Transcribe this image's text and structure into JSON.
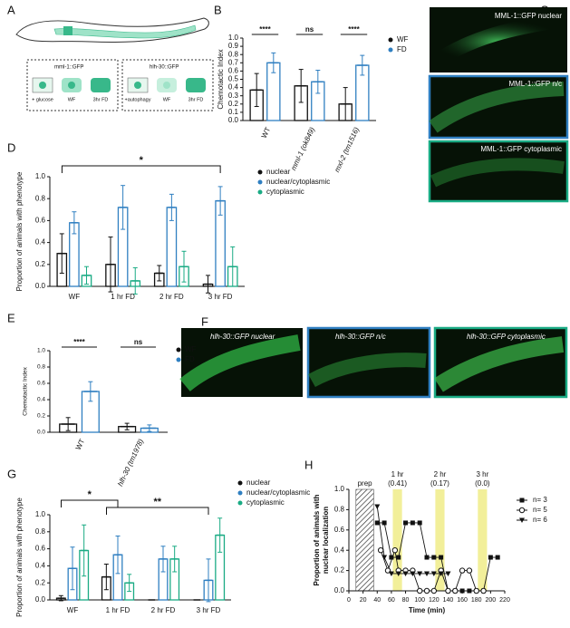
{
  "figure": {
    "panels": [
      "A",
      "B",
      "C",
      "D",
      "E",
      "F",
      "G",
      "H"
    ],
    "schematic": {
      "left": {
        "title": "mml-1::GFP",
        "items": [
          "+ glucose",
          "WF",
          "3hr FD"
        ]
      },
      "right": {
        "title": "hlh-30::GFP",
        "items": [
          "+autophagy",
          "WF",
          "3hr FD"
        ]
      }
    },
    "micrographs_c": [
      "MML-1::GFP nuclear",
      "MML-1::GFP n/c",
      "MML-1::GFP cytoplasmic"
    ],
    "micrographs_f": [
      "hlh-30::GFP nuclear",
      "hlh-30::GFP n/c",
      "hlh-30::GFP cytoplasmic"
    ]
  },
  "chart_data": [
    {
      "type": "bar",
      "ylabel": "Chemotactic Index",
      "categories": [
        "WT",
        "mml-1 (ok849)",
        "mxl-2 (tm1516)"
      ],
      "ylim": [
        0,
        1
      ],
      "yticks": [
        {
          "value": 0,
          "label": "0.0"
        },
        0.1,
        0.2,
        0.3,
        0.4,
        0.5,
        0.6,
        0.7,
        0.8,
        0.9,
        {
          "value": 1,
          "label": "1.0"
        }
      ],
      "series": [
        {
          "name": "WF",
          "color": "#111111",
          "values": [
            0.37,
            0.42,
            0.2
          ],
          "errors": [
            0.2,
            0.2,
            0.2
          ]
        },
        {
          "name": "FD",
          "color": "#2f7fc1",
          "values": [
            0.7,
            0.47,
            0.67
          ],
          "errors": [
            0.12,
            0.14,
            0.12
          ]
        }
      ],
      "significance": [
        "****",
        "ns",
        "****"
      ]
    },
    {
      "type": "bar",
      "ylabel": "Proportion of animals with phenotype",
      "categories": [
        "WF",
        "1 hr FD",
        "2 hr FD",
        "3 hr FD"
      ],
      "ylim": [
        0,
        1
      ],
      "yticks": [
        {
          "value": 0,
          "label": "0.0"
        },
        0.2,
        0.4,
        0.6,
        0.8,
        {
          "value": 1,
          "label": "1.0"
        }
      ],
      "series": [
        {
          "name": "nuclear",
          "color": "#111111",
          "values": [
            0.3,
            0.2,
            0.12,
            0.02
          ],
          "errors": [
            0.18,
            0.25,
            0.07,
            0.08
          ]
        },
        {
          "name": "nuclear/cytoplasmic",
          "color": "#2f7fc1",
          "values": [
            0.58,
            0.72,
            0.72,
            0.78
          ],
          "errors": [
            0.1,
            0.2,
            0.12,
            0.13
          ]
        },
        {
          "name": "cytoplasmic",
          "color": "#1aab84",
          "values": [
            0.1,
            0.05,
            0.18,
            0.18
          ],
          "errors": [
            0.08,
            0.12,
            0.14,
            0.18
          ]
        }
      ],
      "brackets": [
        "*"
      ]
    },
    {
      "type": "bar",
      "ylabel": "Chemotactic Index",
      "categories": [
        "WT",
        "hlh-30 (tm1978)"
      ],
      "ylim": [
        0,
        1
      ],
      "yticks": [
        {
          "value": 0,
          "label": "0.0"
        },
        0.2,
        0.4,
        0.6,
        0.8,
        {
          "value": 1,
          "label": "1.0"
        }
      ],
      "series": [
        {
          "name": "WF",
          "color": "#111111",
          "values": [
            0.1,
            0.07
          ],
          "errors": [
            0.08,
            0.04
          ]
        },
        {
          "name": "FD",
          "color": "#2f7fc1",
          "values": [
            0.5,
            0.05
          ],
          "errors": [
            0.12,
            0.04
          ]
        }
      ],
      "significance": [
        "****",
        "ns"
      ]
    },
    {
      "type": "bar",
      "ylabel": "Proportion of animals with phenotype",
      "categories": [
        "WF",
        "1 hr FD",
        "2 hr FD",
        "3 hr FD"
      ],
      "ylim": [
        0,
        1
      ],
      "yticks": [
        {
          "value": 0,
          "label": "0.0"
        },
        0.2,
        0.4,
        0.6,
        0.8,
        {
          "value": 1,
          "label": "1.0"
        }
      ],
      "series": [
        {
          "name": "nuclear",
          "color": "#111111",
          "values": [
            0.02,
            0.27,
            0,
            0
          ],
          "errors": [
            0.03,
            0.15,
            0,
            0
          ]
        },
        {
          "name": "nuclear/cytoplasmic",
          "color": "#2f7fc1",
          "values": [
            0.37,
            0.53,
            0.48,
            0.23
          ],
          "errors": [
            0.25,
            0.22,
            0.15,
            0.25
          ]
        },
        {
          "name": "cytoplasmic",
          "color": "#1aab84",
          "values": [
            0.58,
            0.2,
            0.48,
            0.76
          ],
          "errors": [
            0.3,
            0.1,
            0.15,
            0.2
          ]
        }
      ],
      "brackets": [
        "*",
        "**"
      ]
    },
    {
      "type": "line",
      "ylabel": [
        "Proportion of animals with",
        "nuclear  localization"
      ],
      "xlabel": "Time (min)",
      "xlim": [
        0,
        220
      ],
      "xticks": [
        0,
        20,
        40,
        60,
        80,
        100,
        120,
        140,
        160,
        180,
        200,
        220
      ],
      "ylim": [
        0,
        1
      ],
      "yticks": [
        {
          "value": 0,
          "label": "0.0"
        },
        0.2,
        0.4,
        0.6,
        0.8,
        {
          "value": 1,
          "label": "1.0"
        }
      ],
      "prep": {
        "label": "prep",
        "range": [
          10,
          35
        ]
      },
      "windows": [
        {
          "label": "1 hr",
          "note": "(0.41)",
          "range": [
            62,
            75
          ]
        },
        {
          "label": "2 hr",
          "note": "(0.17)",
          "range": [
            122,
            135
          ]
        },
        {
          "label": "3 hr",
          "note": "(0.0)",
          "range": [
            182,
            195
          ]
        }
      ],
      "series": [
        {
          "name": "n= 3",
          "marker": "square",
          "x": [
            40,
            50,
            60,
            70,
            80,
            90,
            100,
            110,
            120,
            130,
            140,
            150,
            160,
            170,
            180,
            190,
            200,
            210
          ],
          "values": [
            0.67,
            0.67,
            0.33,
            0.33,
            0.67,
            0.67,
            0.67,
            0.33,
            0.33,
            0.33,
            0,
            0,
            0,
            0,
            0,
            0,
            0.33,
            0.33
          ]
        },
        {
          "name": "n= 5",
          "marker": "circle",
          "x": [
            45,
            55,
            65,
            70,
            80,
            90,
            100,
            110,
            120,
            130,
            140,
            150,
            160,
            170,
            180,
            190
          ],
          "values": [
            0.4,
            0.2,
            0.4,
            0.2,
            0.2,
            0.2,
            0,
            0,
            0,
            0.2,
            0,
            0,
            0.2,
            0.2,
            0,
            0
          ]
        },
        {
          "name": "n= 6",
          "marker": "triangle",
          "x": [
            40,
            50,
            60,
            70,
            80,
            90,
            100,
            110,
            120,
            130,
            140
          ],
          "values": [
            0.83,
            0.33,
            0.17,
            0.17,
            0.17,
            0.17,
            0.17,
            0.17,
            0.17,
            0.17,
            0.17
          ]
        }
      ]
    }
  ]
}
